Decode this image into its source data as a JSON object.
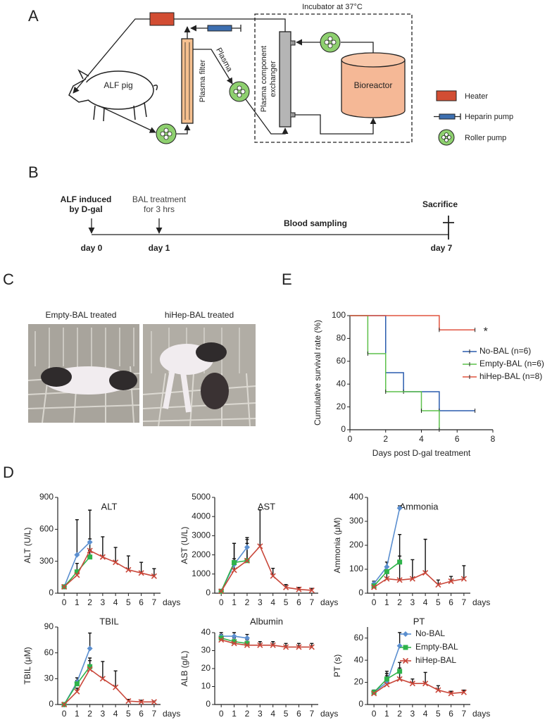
{
  "panel_labels": [
    "A",
    "B",
    "C",
    "D",
    "E"
  ],
  "diagram": {
    "alf_pig": "ALF pig",
    "plasma_filter": "Plasma filter",
    "plasma": "Plasma",
    "exchanger": [
      "Plasma component",
      "exchanger"
    ],
    "bioreactor": "Bioreactor",
    "incubator": "Incubator at 37°C",
    "legend": [
      "Heater",
      "Heparin pump",
      "Roller pump"
    ]
  },
  "timeline": {
    "events": [
      {
        "lines": [
          "ALF induced",
          "by D-gal"
        ],
        "day": "day 0"
      },
      {
        "lines": [
          "BAL treatment",
          "for 3 hrs"
        ],
        "day": "day 1"
      },
      {
        "lines": [
          "Sacrifice"
        ],
        "day": "day 7"
      }
    ],
    "middle": "Blood sampling"
  },
  "photos": [
    "Empty-BAL treated",
    "hiHep-BAL treated"
  ],
  "chart_data": [
    {
      "type": "survival",
      "xlabel": "Days post D-gal treatment",
      "ylabel": "Cumulative survival rate (%)",
      "annotation": "*",
      "xlim": [
        0,
        8
      ],
      "ylim": [
        0,
        100
      ],
      "xticks": [
        0,
        2,
        4,
        6,
        8
      ],
      "yticks": [
        0,
        20,
        40,
        60,
        80,
        100
      ],
      "legend": "right",
      "series": [
        {
          "name": "No-BAL (n=6)",
          "color": "#2a5cae",
          "x": [
            0,
            2,
            3,
            5,
            7
          ],
          "values": [
            100,
            50,
            33.3,
            16.7,
            16.7
          ]
        },
        {
          "name": "Empty-BAL (n=6)",
          "color": "#5cc04a",
          "x": [
            0,
            1,
            2,
            4,
            5
          ],
          "values": [
            100,
            66.7,
            33.3,
            16.7,
            0
          ]
        },
        {
          "name": "hiHep-BAL (n=8)",
          "color": "#e0533f",
          "x": [
            0,
            5,
            7
          ],
          "values": [
            100,
            87.5,
            87.5
          ]
        }
      ]
    },
    {
      "type": "line",
      "title": "ALT",
      "ylabel": "ALT (U/L)",
      "xlabel": "days",
      "xlim": [
        -0.5,
        7.5
      ],
      "ylim": [
        0,
        900
      ],
      "xticks": [
        0,
        1,
        2,
        3,
        4,
        5,
        6,
        7
      ],
      "yticks": [
        0,
        300,
        600,
        900
      ],
      "series": [
        {
          "color": "#5b8fd0",
          "marker": "diamond",
          "x": [
            0,
            1,
            2
          ],
          "values": [
            60,
            360,
            480
          ],
          "errors": [
            10,
            330,
            300
          ]
        },
        {
          "color": "#2eb34a",
          "marker": "square",
          "x": [
            0,
            1,
            2
          ],
          "values": [
            60,
            200,
            340
          ],
          "errors": [
            10,
            80,
            60
          ]
        },
        {
          "color": "#c9473a",
          "marker": "cross",
          "x": [
            0,
            1,
            2,
            3,
            4,
            5,
            6,
            7
          ],
          "values": [
            60,
            170,
            400,
            340,
            290,
            220,
            190,
            160
          ],
          "errors": [
            10,
            40,
            110,
            190,
            140,
            130,
            100,
            70
          ]
        }
      ]
    },
    {
      "type": "line",
      "title": "AST",
      "ylabel": "AST (U/L)",
      "xlabel": "days",
      "xlim": [
        -0.5,
        7.5
      ],
      "ylim": [
        0,
        5000
      ],
      "xticks": [
        0,
        1,
        2,
        3,
        4,
        5,
        6,
        7
      ],
      "yticks": [
        0,
        1000,
        2000,
        3000,
        4000,
        5000
      ],
      "series": [
        {
          "color": "#5b8fd0",
          "marker": "diamond",
          "x": [
            0,
            1,
            2
          ],
          "values": [
            100,
            1500,
            2400
          ],
          "errors": [
            50,
            1100,
            500
          ]
        },
        {
          "color": "#2eb34a",
          "marker": "square",
          "x": [
            0,
            1,
            2
          ],
          "values": [
            100,
            1600,
            1700
          ],
          "errors": [
            50,
            1000,
            1100
          ]
        },
        {
          "color": "#c9473a",
          "marker": "cross",
          "x": [
            0,
            1,
            2,
            3,
            4,
            5,
            6,
            7
          ],
          "values": [
            100,
            1200,
            1700,
            2450,
            900,
            300,
            200,
            150
          ],
          "errors": [
            50,
            600,
            900,
            1900,
            400,
            150,
            100,
            100
          ]
        }
      ]
    },
    {
      "type": "line",
      "title": "Ammonia",
      "ylabel": "Ammonia (μM)",
      "xlabel": "days",
      "xlim": [
        -0.5,
        7.5
      ],
      "ylim": [
        0,
        400
      ],
      "xticks": [
        0,
        1,
        2,
        3,
        4,
        5,
        6,
        7
      ],
      "yticks": [
        0,
        100,
        200,
        300,
        400
      ],
      "series": [
        {
          "color": "#5b8fd0",
          "marker": "diamond",
          "x": [
            0,
            1,
            2
          ],
          "values": [
            40,
            110,
            355
          ],
          "errors": [
            10,
            20,
            10
          ]
        },
        {
          "color": "#2eb34a",
          "marker": "square",
          "x": [
            0,
            1,
            2
          ],
          "values": [
            30,
            90,
            130
          ],
          "errors": [
            10,
            20,
            115
          ]
        },
        {
          "color": "#c9473a",
          "marker": "cross",
          "x": [
            0,
            1,
            2,
            3,
            4,
            5,
            6,
            7
          ],
          "values": [
            25,
            60,
            55,
            60,
            85,
            35,
            50,
            60
          ],
          "errors": [
            10,
            50,
            100,
            80,
            140,
            20,
            20,
            55
          ]
        }
      ]
    },
    {
      "type": "line",
      "title": "TBIL",
      "ylabel": "TBIL (μM)",
      "xlabel": "days",
      "xlim": [
        -0.5,
        7.5
      ],
      "ylim": [
        0,
        90
      ],
      "xticks": [
        0,
        1,
        2,
        3,
        4,
        5,
        6,
        7
      ],
      "yticks": [
        0,
        30,
        60,
        90
      ],
      "series": [
        {
          "color": "#5b8fd0",
          "marker": "diamond",
          "x": [
            0,
            1,
            2
          ],
          "values": [
            0,
            26,
            65
          ],
          "errors": [
            1,
            5,
            18
          ]
        },
        {
          "color": "#2eb34a",
          "marker": "square",
          "x": [
            0,
            1,
            2
          ],
          "values": [
            0,
            24,
            44
          ],
          "errors": [
            1,
            4,
            10
          ]
        },
        {
          "color": "#c9473a",
          "marker": "cross",
          "x": [
            0,
            1,
            2,
            3,
            4,
            5,
            6,
            7
          ],
          "values": [
            0,
            15,
            41,
            30,
            20,
            4,
            3,
            3
          ],
          "errors": [
            1,
            4,
            10,
            20,
            19,
            2,
            2,
            1
          ]
        }
      ]
    },
    {
      "type": "line",
      "title": "Albumin",
      "ylabel": "ALB (g/L)",
      "xlabel": "days",
      "xlim": [
        -0.5,
        7.5
      ],
      "ylim": [
        0,
        40
      ],
      "xticks": [
        0,
        1,
        2,
        3,
        4,
        5,
        6,
        7
      ],
      "yticks": [
        0,
        10,
        20,
        30,
        40
      ],
      "series": [
        {
          "color": "#5b8fd0",
          "marker": "diamond",
          "x": [
            0,
            1,
            2
          ],
          "values": [
            38,
            38,
            37
          ],
          "errors": [
            2,
            2,
            2
          ]
        },
        {
          "color": "#2eb34a",
          "marker": "square",
          "x": [
            0,
            1,
            2
          ],
          "values": [
            37,
            35,
            34
          ],
          "errors": [
            2,
            2,
            2
          ]
        },
        {
          "color": "#c9473a",
          "marker": "cross",
          "x": [
            0,
            1,
            2,
            3,
            4,
            5,
            6,
            7
          ],
          "values": [
            36,
            34,
            33,
            33,
            33,
            32,
            32,
            32
          ],
          "errors": [
            2,
            2,
            2,
            2,
            2,
            2,
            2,
            2
          ]
        }
      ]
    },
    {
      "type": "line",
      "title": "PT",
      "ylabel": "PT (s)",
      "xlabel": "days",
      "xlim": [
        -0.5,
        7.5
      ],
      "ylim": [
        0,
        70
      ],
      "xticks": [
        0,
        1,
        2,
        3,
        4,
        5,
        6,
        7
      ],
      "yticks": [
        0,
        20,
        40,
        60
      ],
      "legend": "upper right",
      "series": [
        {
          "name": "No-BAL",
          "color": "#5b8fd0",
          "marker": "diamond",
          "x": [
            0,
            1,
            2
          ],
          "values": [
            11,
            20,
            53
          ],
          "errors": [
            2,
            10,
            12
          ]
        },
        {
          "name": "Empty-BAL",
          "color": "#2eb34a",
          "marker": "square",
          "x": [
            0,
            1,
            2
          ],
          "values": [
            11,
            23,
            30
          ],
          "errors": [
            2,
            5,
            8
          ]
        },
        {
          "name": "hiHep-BAL",
          "color": "#c9473a",
          "marker": "cross",
          "x": [
            0,
            1,
            2,
            3,
            4,
            5,
            6,
            7
          ],
          "values": [
            10,
            18,
            23,
            19,
            19,
            13,
            10,
            11
          ],
          "errors": [
            1,
            8,
            10,
            4,
            10,
            4,
            2,
            2
          ]
        }
      ]
    }
  ]
}
